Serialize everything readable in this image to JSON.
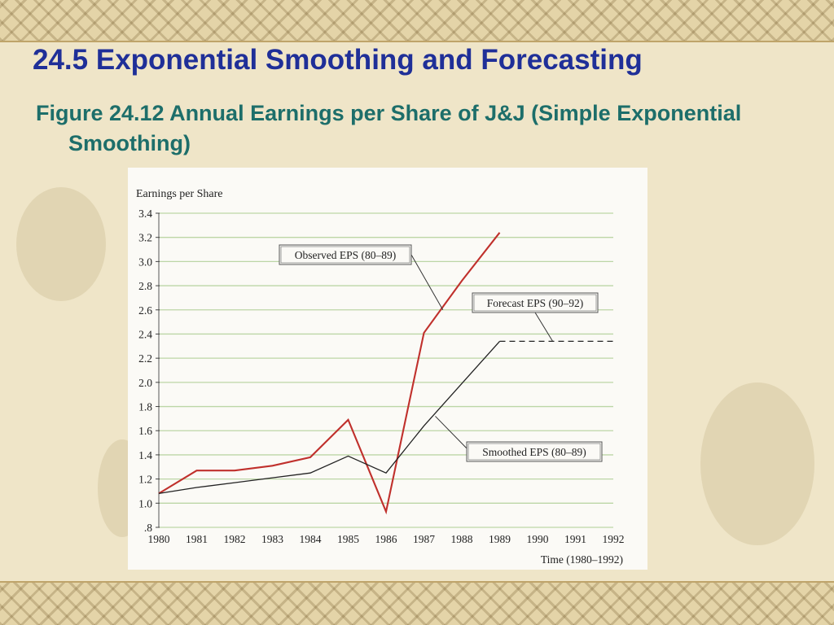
{
  "slide": {
    "title": "24.5  Exponential Smoothing and Forecasting",
    "subtitle": "Figure 24.12 Annual Earnings per Share of J&J (Simple Exponential Smoothing)"
  },
  "colors": {
    "title": "#1f2f98",
    "subtitle": "#1d6e6a",
    "observed": "#c0302c",
    "smoothed": "#222222",
    "forecast": "#222222",
    "grid": "#bcd6a6"
  },
  "chart_data": {
    "type": "line",
    "ylabel": "Earnings per Share",
    "xlabel": "Time (1980–1992)",
    "x_ticks": [
      "1980",
      "1981",
      "1982",
      "1983",
      "1984",
      "1985",
      "1986",
      "1987",
      "1988",
      "1989",
      "1990",
      "1991",
      "1992"
    ],
    "y_ticks": [
      "3.4",
      "3.2",
      "3.0",
      "2.8",
      "2.6",
      "2.4",
      "2.2",
      "2.0",
      "1.8",
      "1.6",
      "1.4",
      "1.2",
      "1.0",
      ".8"
    ],
    "ylim": [
      0.8,
      3.4
    ],
    "xlim": [
      1980,
      1992
    ],
    "grid": true,
    "series": [
      {
        "name": "Observed EPS (80–89)",
        "x": [
          1980,
          1981,
          1982,
          1983,
          1984,
          1985,
          1986,
          1987,
          1988,
          1989
        ],
        "values": [
          1.08,
          1.27,
          1.27,
          1.31,
          1.38,
          1.69,
          0.93,
          2.41,
          2.84,
          3.24
        ]
      },
      {
        "name": "Smoothed EPS (80–89)",
        "x": [
          1980,
          1981,
          1982,
          1983,
          1984,
          1985,
          1986,
          1987,
          1988,
          1989
        ],
        "values": [
          1.08,
          1.13,
          1.17,
          1.21,
          1.25,
          1.39,
          1.25,
          1.64,
          1.99,
          2.34
        ]
      },
      {
        "name": "Forecast EPS (90–92)",
        "x": [
          1989,
          1990,
          1991,
          1992
        ],
        "values": [
          2.34,
          2.34,
          2.34,
          2.34
        ]
      }
    ],
    "annotations": [
      {
        "label": "Observed EPS (80–89)",
        "points_to": {
          "x": 1987.5,
          "y": 2.6
        }
      },
      {
        "label": "Forecast EPS (90–92)",
        "points_to": {
          "x": 1990.4,
          "y": 2.34
        }
      },
      {
        "label": "Smoothed EPS (80–89)",
        "points_to": {
          "x": 1987.3,
          "y": 1.72
        }
      }
    ]
  }
}
